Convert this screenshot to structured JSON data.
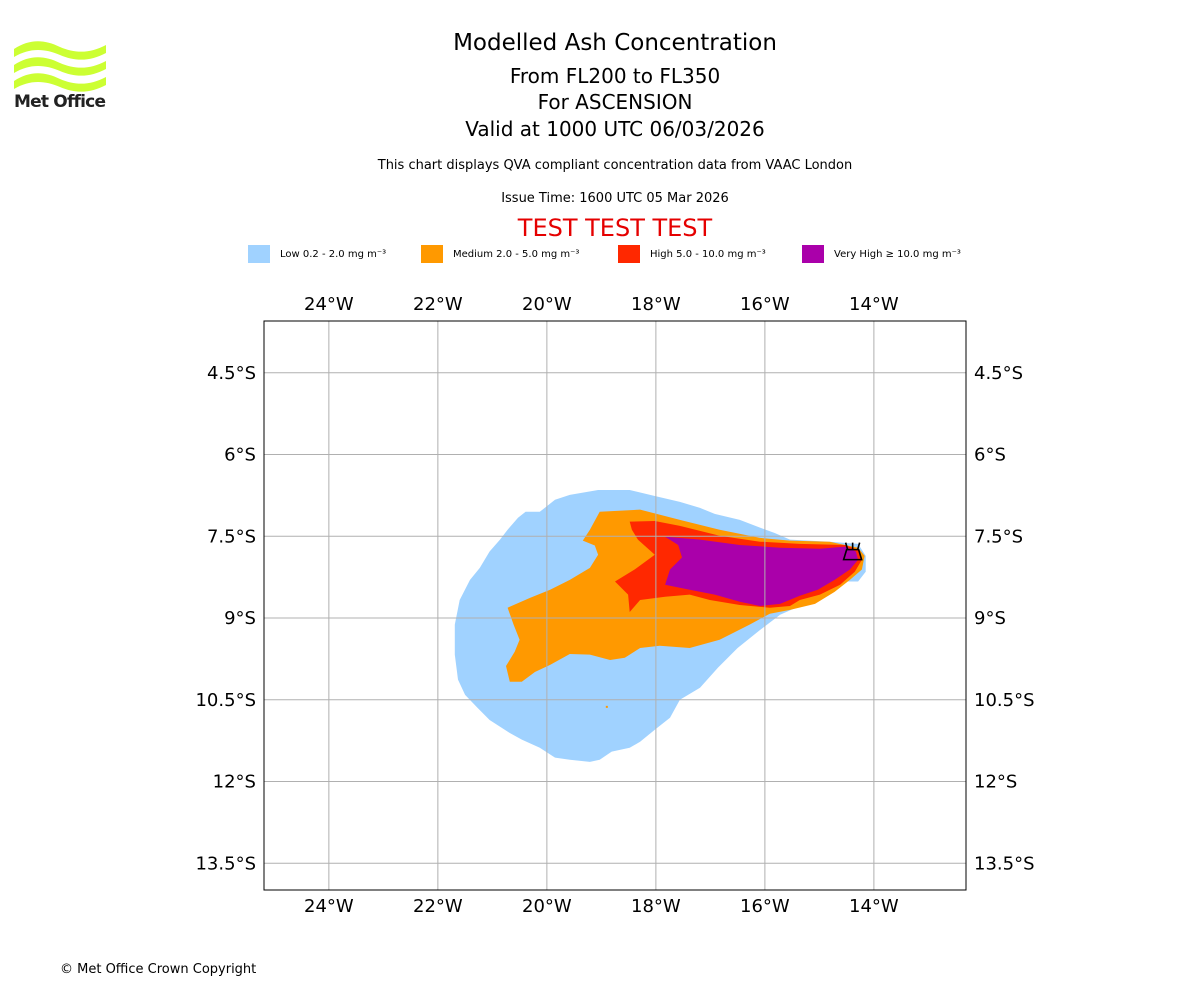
{
  "header": {
    "title": "Modelled Ash Concentration",
    "subtitle_levels": "From FL200 to FL350",
    "subtitle_region": "For ASCENSION",
    "subtitle_valid": "Valid at 1000 UTC 06/03/2026",
    "description": "This chart displays QVA compliant concentration data from VAAC London",
    "issue_time": "Issue Time: 1600 UTC 05 Mar 2026",
    "test_banner": "TEST TEST TEST"
  },
  "logo": {
    "text": "Met Office",
    "icon": "met-office-waves-logo",
    "color": "#ccff33"
  },
  "legend": [
    {
      "label": "Low 0.2 - 2.0 mg m⁻³",
      "color": "#a0d2ff"
    },
    {
      "label": "Medium 2.0 - 5.0 mg m⁻³",
      "color": "#ff9900"
    },
    {
      "label": "High 5.0 - 10.0 mg m⁻³",
      "color": "#ff2800"
    },
    {
      "label": "Very High ≥ 10.0 mg m⁻³",
      "color": "#aa00aa"
    }
  ],
  "footer": {
    "copyright": "© Met Office Crown Copyright"
  },
  "chart_data": {
    "type": "map",
    "title": "Modelled Ash Concentration",
    "extent": {
      "lon_min": -25.19,
      "lon_max": -12.31,
      "lat_min": -13.99,
      "lat_max": -3.55
    },
    "grid": true,
    "x_ticks": [
      {
        "value": -24,
        "label": "24°W"
      },
      {
        "value": -22,
        "label": "22°W"
      },
      {
        "value": -20,
        "label": "20°W"
      },
      {
        "value": -18,
        "label": "18°W"
      },
      {
        "value": -16,
        "label": "16°W"
      },
      {
        "value": -14,
        "label": "14°W"
      }
    ],
    "y_ticks": [
      {
        "value": -4.5,
        "label": "4.5°S"
      },
      {
        "value": -6,
        "label": "6°S"
      },
      {
        "value": -7.5,
        "label": "7.5°S"
      },
      {
        "value": -9,
        "label": "9°S"
      },
      {
        "value": -10.5,
        "label": "10.5°S"
      },
      {
        "value": -12,
        "label": "12°S"
      },
      {
        "value": -13.5,
        "label": "13.5°S"
      }
    ],
    "volcano": {
      "lon": -14.39,
      "lat": -7.8,
      "symbol": "volcano-icon"
    },
    "isolated_points": [
      {
        "lon": -18.9,
        "lat": -10.63,
        "level": "Medium"
      }
    ],
    "contours": [
      {
        "level": "Low",
        "color": "#a0d2ff",
        "points": [
          [
            -19.06,
            -6.65
          ],
          [
            -18.48,
            -6.65
          ],
          [
            -18.02,
            -6.76
          ],
          [
            -17.56,
            -6.87
          ],
          [
            -17.19,
            -6.98
          ],
          [
            -16.92,
            -7.09
          ],
          [
            -16.46,
            -7.2
          ],
          [
            -16.09,
            -7.34
          ],
          [
            -15.82,
            -7.44
          ],
          [
            -15.54,
            -7.56
          ],
          [
            -14.81,
            -7.6
          ],
          [
            -14.29,
            -7.64
          ],
          [
            -14.15,
            -7.86
          ],
          [
            -14.15,
            -8.15
          ],
          [
            -14.29,
            -8.33
          ],
          [
            -14.62,
            -8.33
          ],
          [
            -14.95,
            -8.57
          ],
          [
            -15.36,
            -8.78
          ],
          [
            -15.72,
            -8.94
          ],
          [
            -16.09,
            -9.22
          ],
          [
            -16.5,
            -9.55
          ],
          [
            -16.86,
            -9.91
          ],
          [
            -17.19,
            -10.28
          ],
          [
            -17.56,
            -10.5
          ],
          [
            -17.74,
            -10.83
          ],
          [
            -18.02,
            -11.05
          ],
          [
            -18.29,
            -11.27
          ],
          [
            -18.48,
            -11.38
          ],
          [
            -18.81,
            -11.45
          ],
          [
            -19.03,
            -11.6
          ],
          [
            -19.21,
            -11.64
          ],
          [
            -19.58,
            -11.6
          ],
          [
            -19.85,
            -11.56
          ],
          [
            -20.13,
            -11.38
          ],
          [
            -20.46,
            -11.23
          ],
          [
            -20.68,
            -11.11
          ],
          [
            -21.05,
            -10.87
          ],
          [
            -21.27,
            -10.65
          ],
          [
            -21.5,
            -10.41
          ],
          [
            -21.63,
            -10.13
          ],
          [
            -21.69,
            -9.67
          ],
          [
            -21.69,
            -9.12
          ],
          [
            -21.6,
            -8.67
          ],
          [
            -21.41,
            -8.3
          ],
          [
            -21.23,
            -8.08
          ],
          [
            -21.05,
            -7.78
          ],
          [
            -20.86,
            -7.56
          ],
          [
            -20.72,
            -7.38
          ],
          [
            -20.53,
            -7.16
          ],
          [
            -20.39,
            -7.05
          ],
          [
            -20.13,
            -7.05
          ],
          [
            -19.85,
            -6.83
          ],
          [
            -19.58,
            -6.74
          ]
        ]
      },
      {
        "level": "Medium",
        "color": "#ff9900",
        "points": [
          [
            -19.03,
            -7.05
          ],
          [
            -18.29,
            -7.01
          ],
          [
            -17.56,
            -7.2
          ],
          [
            -16.83,
            -7.38
          ],
          [
            -16.09,
            -7.53
          ],
          [
            -15.54,
            -7.58
          ],
          [
            -14.81,
            -7.6
          ],
          [
            -14.29,
            -7.71
          ],
          [
            -14.17,
            -7.86
          ],
          [
            -14.22,
            -8.11
          ],
          [
            -14.44,
            -8.3
          ],
          [
            -14.72,
            -8.52
          ],
          [
            -15.08,
            -8.74
          ],
          [
            -15.54,
            -8.85
          ],
          [
            -15.91,
            -8.92
          ],
          [
            -16.28,
            -9.12
          ],
          [
            -16.83,
            -9.4
          ],
          [
            -17.38,
            -9.55
          ],
          [
            -17.93,
            -9.51
          ],
          [
            -18.29,
            -9.55
          ],
          [
            -18.57,
            -9.73
          ],
          [
            -18.84,
            -9.77
          ],
          [
            -19.21,
            -9.67
          ],
          [
            -19.58,
            -9.66
          ],
          [
            -19.94,
            -9.86
          ],
          [
            -20.22,
            -9.99
          ],
          [
            -20.46,
            -10.17
          ],
          [
            -20.68,
            -10.17
          ],
          [
            -20.75,
            -9.88
          ],
          [
            -20.59,
            -9.62
          ],
          [
            -20.5,
            -9.4
          ],
          [
            -20.61,
            -9.12
          ],
          [
            -20.72,
            -8.81
          ],
          [
            -20.31,
            -8.63
          ],
          [
            -19.94,
            -8.48
          ],
          [
            -19.58,
            -8.3
          ],
          [
            -19.21,
            -8.08
          ],
          [
            -19.06,
            -7.84
          ],
          [
            -19.12,
            -7.67
          ],
          [
            -19.34,
            -7.58
          ],
          [
            -19.21,
            -7.38
          ]
        ]
      },
      {
        "level": "High",
        "color": "#ff2800",
        "points": [
          [
            -18.48,
            -7.23
          ],
          [
            -18.02,
            -7.22
          ],
          [
            -17.56,
            -7.31
          ],
          [
            -16.83,
            -7.49
          ],
          [
            -16.09,
            -7.6
          ],
          [
            -15.36,
            -7.64
          ],
          [
            -14.53,
            -7.66
          ],
          [
            -14.29,
            -7.75
          ],
          [
            -14.22,
            -7.93
          ],
          [
            -14.35,
            -8.15
          ],
          [
            -14.62,
            -8.39
          ],
          [
            -14.99,
            -8.57
          ],
          [
            -15.36,
            -8.67
          ],
          [
            -15.54,
            -8.78
          ],
          [
            -15.91,
            -8.81
          ],
          [
            -16.46,
            -8.76
          ],
          [
            -17.01,
            -8.67
          ],
          [
            -17.38,
            -8.57
          ],
          [
            -17.83,
            -8.61
          ],
          [
            -18.29,
            -8.67
          ],
          [
            -18.48,
            -8.89
          ],
          [
            -18.51,
            -8.57
          ],
          [
            -18.75,
            -8.33
          ],
          [
            -18.39,
            -8.11
          ],
          [
            -18.02,
            -7.84
          ],
          [
            -18.33,
            -7.56
          ],
          [
            -18.44,
            -7.38
          ]
        ]
      },
      {
        "level": "Very High",
        "color": "#aa00aa",
        "points": [
          [
            -17.83,
            -7.51
          ],
          [
            -17.19,
            -7.56
          ],
          [
            -16.46,
            -7.66
          ],
          [
            -15.72,
            -7.71
          ],
          [
            -14.99,
            -7.73
          ],
          [
            -14.53,
            -7.69
          ],
          [
            -14.33,
            -7.78
          ],
          [
            -14.29,
            -7.93
          ],
          [
            -14.44,
            -8.11
          ],
          [
            -14.72,
            -8.3
          ],
          [
            -15.03,
            -8.48
          ],
          [
            -15.36,
            -8.59
          ],
          [
            -15.72,
            -8.74
          ],
          [
            -16.09,
            -8.78
          ],
          [
            -16.46,
            -8.7
          ],
          [
            -16.92,
            -8.57
          ],
          [
            -17.38,
            -8.48
          ],
          [
            -17.83,
            -8.39
          ],
          [
            -17.74,
            -8.11
          ],
          [
            -17.52,
            -7.89
          ],
          [
            -17.59,
            -7.66
          ]
        ]
      }
    ]
  }
}
